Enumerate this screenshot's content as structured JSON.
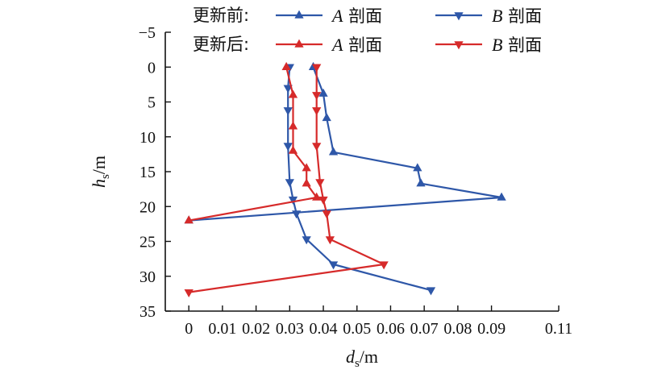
{
  "chart_data": {
    "type": "line",
    "title": "",
    "xlabel": {
      "main": "d",
      "sub": "s",
      "unit": "/m"
    },
    "ylabel": {
      "main": "h",
      "sub": "s",
      "unit": "/m"
    },
    "xlim": [
      -0.007,
      0.11
    ],
    "ylim": [
      -5,
      35
    ],
    "y_inverted": true,
    "x_ticks": [
      0,
      0.01,
      0.02,
      0.03,
      0.04,
      0.05,
      0.06,
      0.07,
      0.08,
      0.09,
      0.11
    ],
    "x_tick_labels": [
      "0",
      "0.01",
      "0.02",
      "0.03",
      "0.04",
      "0.05",
      "0.06",
      "0.07",
      "0.08",
      "0.09",
      "0.11"
    ],
    "y_ticks": [
      -5,
      0,
      5,
      10,
      15,
      20,
      25,
      30,
      35
    ],
    "y_tick_labels": [
      "−5",
      "0",
      "5",
      "10",
      "15",
      "20",
      "25",
      "30",
      "35"
    ],
    "grid": false,
    "legend_placement": "top",
    "legend_groups": [
      "更新前:",
      "更新后:"
    ],
    "series": [
      {
        "name": "A 剖面",
        "group": 0,
        "color": "#2e57a8",
        "marker": "triangle-up",
        "x": [
          0.037,
          0.04,
          0.041,
          0.043,
          0.068,
          0.069,
          0.093,
          0.0
        ],
        "y": [
          0,
          3.8,
          7.3,
          12.2,
          14.5,
          16.7,
          18.7,
          22.0
        ]
      },
      {
        "name": "B 剖面",
        "group": 0,
        "color": "#2e57a8",
        "marker": "triangle-down",
        "x": [
          0.03,
          0.0295,
          0.0295,
          0.0295,
          0.03,
          0.031,
          0.032,
          0.035,
          0.043,
          0.072
        ],
        "y": [
          0,
          3.0,
          6.2,
          11.3,
          16.5,
          19.0,
          21.0,
          24.7,
          28.3,
          32.0
        ]
      },
      {
        "name": "A 剖面",
        "group": 1,
        "color": "#d62a2a",
        "marker": "triangle-up",
        "x": [
          0.029,
          0.031,
          0.031,
          0.031,
          0.035,
          0.035,
          0.038,
          0.0
        ],
        "y": [
          0,
          4.0,
          8.5,
          12.0,
          14.5,
          16.7,
          18.7,
          22.0
        ]
      },
      {
        "name": "B 剖面",
        "group": 1,
        "color": "#d62a2a",
        "marker": "triangle-down",
        "x": [
          0.038,
          0.038,
          0.038,
          0.038,
          0.039,
          0.04,
          0.041,
          0.042,
          0.058,
          0.0
        ],
        "y": [
          0,
          4.0,
          6.2,
          11.3,
          16.5,
          19.0,
          21.0,
          24.7,
          28.3,
          32.3
        ]
      }
    ]
  }
}
